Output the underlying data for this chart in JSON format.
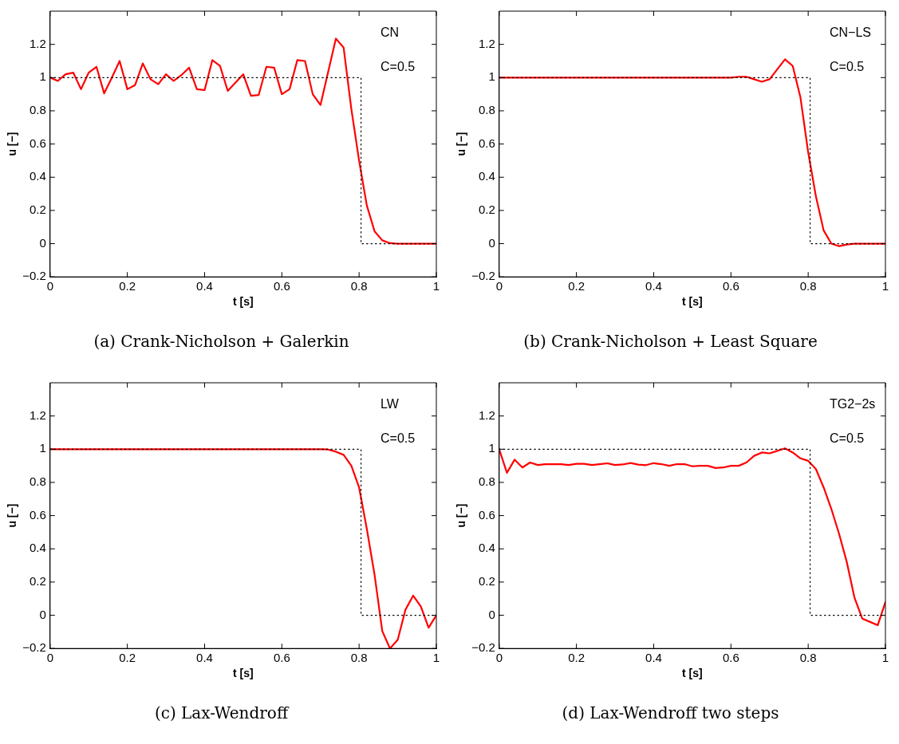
{
  "chart_data": [
    {
      "type": "line",
      "title": "(a) Crank-Nicholson + Galerkin",
      "xlabel": "t [s]",
      "ylabel": "u [−]",
      "annotations": [
        "CN",
        "C=0.5"
      ],
      "marker": "none",
      "grid": false,
      "xlim": [
        0,
        1
      ],
      "ylim": [
        -0.2,
        1.4
      ],
      "xticks": [
        0,
        0.2,
        0.4,
        0.6,
        0.8,
        1
      ],
      "yticks": [
        -0.2,
        0,
        0.2,
        0.4,
        0.6,
        0.8,
        1,
        1.2
      ],
      "x": [
        0,
        0.02,
        0.04,
        0.06,
        0.08,
        0.1,
        0.12,
        0.14,
        0.16,
        0.18,
        0.2,
        0.22,
        0.24,
        0.26,
        0.28,
        0.3,
        0.32,
        0.34,
        0.36,
        0.38,
        0.4,
        0.42,
        0.44,
        0.46,
        0.48,
        0.5,
        0.52,
        0.54,
        0.56,
        0.58,
        0.6,
        0.62,
        0.64,
        0.66,
        0.68,
        0.7,
        0.72,
        0.74,
        0.76,
        0.78,
        0.8,
        0.82,
        0.84,
        0.86,
        0.88,
        0.9,
        0.92,
        0.94,
        0.96,
        0.98,
        1
      ],
      "series": [
        {
          "color": "#000000",
          "type": "line",
          "line_style": "dotted",
          "x": [
            0,
            0.805,
            0.805,
            1
          ],
          "values": [
            1,
            1,
            0,
            0
          ]
        },
        {
          "color": "#ff0000",
          "values": [
            1.0,
            0.98,
            1.02,
            1.03,
            0.93,
            1.03,
            1.065,
            0.905,
            1.0,
            1.1,
            0.93,
            0.955,
            1.085,
            0.99,
            0.96,
            1.02,
            0.98,
            1.015,
            1.06,
            0.93,
            0.925,
            1.105,
            1.07,
            0.92,
            0.97,
            1.02,
            0.89,
            0.895,
            1.065,
            1.06,
            0.9,
            0.93,
            1.105,
            1.1,
            0.9,
            0.835,
            1.035,
            1.235,
            1.18,
            0.81,
            0.5,
            0.23,
            0.075,
            0.02,
            0.003,
            0,
            0,
            0,
            0,
            0,
            0
          ]
        }
      ]
    },
    {
      "type": "line",
      "title": "(b) Crank-Nicholson + Least Square",
      "xlabel": "t [s]",
      "ylabel": "u [−]",
      "annotations": [
        "CN−LS",
        "C=0.5"
      ],
      "marker": "none",
      "grid": false,
      "xlim": [
        0,
        1
      ],
      "ylim": [
        -0.2,
        1.4
      ],
      "xticks": [
        0,
        0.2,
        0.4,
        0.6,
        0.8,
        1
      ],
      "yticks": [
        -0.2,
        0,
        0.2,
        0.4,
        0.6,
        0.8,
        1,
        1.2
      ],
      "x": [
        0,
        0.02,
        0.04,
        0.06,
        0.08,
        0.1,
        0.12,
        0.14,
        0.16,
        0.18,
        0.2,
        0.22,
        0.24,
        0.26,
        0.28,
        0.3,
        0.32,
        0.34,
        0.36,
        0.38,
        0.4,
        0.42,
        0.44,
        0.46,
        0.48,
        0.5,
        0.52,
        0.54,
        0.56,
        0.58,
        0.6,
        0.62,
        0.64,
        0.66,
        0.68,
        0.7,
        0.72,
        0.74,
        0.76,
        0.78,
        0.8,
        0.82,
        0.84,
        0.86,
        0.88,
        0.9,
        0.92,
        0.94,
        0.96,
        0.98,
        1
      ],
      "series": [
        {
          "color": "#000000",
          "type": "line",
          "line_style": "dotted",
          "x": [
            0,
            0.805,
            0.805,
            1
          ],
          "values": [
            1,
            1,
            0,
            0
          ]
        },
        {
          "color": "#ff0000",
          "values": [
            1,
            1,
            1,
            1,
            1,
            1,
            1,
            1,
            1,
            1,
            1,
            1,
            1,
            1,
            1,
            1,
            1,
            1,
            1,
            1,
            1,
            1,
            1,
            1,
            1,
            1,
            1,
            1,
            1,
            1,
            1.0,
            1.005,
            1.005,
            0.99,
            0.975,
            0.99,
            1.05,
            1.11,
            1.07,
            0.88,
            0.55,
            0.285,
            0.08,
            0,
            -0.015,
            -0.005,
            0,
            0,
            0,
            0,
            0
          ]
        }
      ]
    },
    {
      "type": "line",
      "title": "(c) Lax-Wendroff",
      "xlabel": "t [s]",
      "ylabel": "u [−]",
      "annotations": [
        "LW",
        "C=0.5"
      ],
      "marker": "none",
      "grid": false,
      "xlim": [
        0,
        1
      ],
      "ylim": [
        -0.2,
        1.4
      ],
      "xticks": [
        0,
        0.2,
        0.4,
        0.6,
        0.8,
        1
      ],
      "yticks": [
        -0.2,
        0,
        0.2,
        0.4,
        0.6,
        0.8,
        1,
        1.2
      ],
      "x": [
        0,
        0.02,
        0.04,
        0.06,
        0.08,
        0.1,
        0.12,
        0.14,
        0.16,
        0.18,
        0.2,
        0.22,
        0.24,
        0.26,
        0.28,
        0.3,
        0.32,
        0.34,
        0.36,
        0.38,
        0.4,
        0.42,
        0.44,
        0.46,
        0.48,
        0.5,
        0.52,
        0.54,
        0.56,
        0.58,
        0.6,
        0.62,
        0.64,
        0.66,
        0.68,
        0.7,
        0.72,
        0.74,
        0.76,
        0.78,
        0.8,
        0.82,
        0.84,
        0.86,
        0.88,
        0.9,
        0.92,
        0.94,
        0.96,
        0.98,
        1
      ],
      "series": [
        {
          "color": "#000000",
          "type": "line",
          "line_style": "dotted",
          "x": [
            0,
            0.805,
            0.805,
            1
          ],
          "values": [
            1,
            1,
            0,
            0
          ]
        },
        {
          "color": "#ff0000",
          "values": [
            1,
            1,
            1,
            1,
            1,
            1,
            1,
            1,
            1,
            1,
            1,
            1,
            1,
            1,
            1,
            1,
            1,
            1,
            1,
            1,
            1,
            1,
            1,
            1,
            1,
            1,
            1,
            1,
            1,
            1,
            1,
            1,
            1,
            1,
            1,
            1,
            0.998,
            0.985,
            0.966,
            0.9,
            0.77,
            0.52,
            0.245,
            -0.095,
            -0.2,
            -0.147,
            0.033,
            0.118,
            0.052,
            -0.075,
            0
          ]
        }
      ]
    },
    {
      "type": "line",
      "title": "(d) Lax-Wendroff two steps",
      "xlabel": "t [s]",
      "ylabel": "u [−]",
      "annotations": [
        "TG2−2s",
        "C=0.5"
      ],
      "marker": "none",
      "grid": false,
      "xlim": [
        0,
        1
      ],
      "ylim": [
        -0.2,
        1.4
      ],
      "xticks": [
        0,
        0.2,
        0.4,
        0.6,
        0.8,
        1
      ],
      "yticks": [
        -0.2,
        0,
        0.2,
        0.4,
        0.6,
        0.8,
        1,
        1.2
      ],
      "x": [
        0,
        0.02,
        0.04,
        0.06,
        0.08,
        0.1,
        0.12,
        0.14,
        0.16,
        0.18,
        0.2,
        0.22,
        0.24,
        0.26,
        0.28,
        0.3,
        0.32,
        0.34,
        0.36,
        0.38,
        0.4,
        0.42,
        0.44,
        0.46,
        0.48,
        0.5,
        0.52,
        0.54,
        0.56,
        0.58,
        0.6,
        0.62,
        0.64,
        0.66,
        0.68,
        0.7,
        0.72,
        0.74,
        0.76,
        0.78,
        0.8,
        0.82,
        0.84,
        0.86,
        0.88,
        0.9,
        0.92,
        0.94,
        0.96,
        0.98,
        1
      ],
      "series": [
        {
          "color": "#000000",
          "type": "line",
          "line_style": "dotted",
          "x": [
            0,
            0.805,
            0.805,
            1
          ],
          "values": [
            1,
            1,
            0,
            0
          ]
        },
        {
          "color": "#ff0000",
          "values": [
            1.0,
            0.858,
            0.937,
            0.89,
            0.92,
            0.905,
            0.91,
            0.91,
            0.91,
            0.905,
            0.912,
            0.912,
            0.905,
            0.91,
            0.915,
            0.905,
            0.908,
            0.917,
            0.907,
            0.904,
            0.916,
            0.91,
            0.9,
            0.91,
            0.91,
            0.897,
            0.9,
            0.9,
            0.887,
            0.89,
            0.9,
            0.9,
            0.92,
            0.96,
            0.98,
            0.975,
            0.99,
            1.005,
            0.98,
            0.945,
            0.93,
            0.88,
            0.77,
            0.64,
            0.49,
            0.32,
            0.105,
            -0.02,
            -0.04,
            -0.06,
            0.08
          ]
        }
      ]
    }
  ]
}
